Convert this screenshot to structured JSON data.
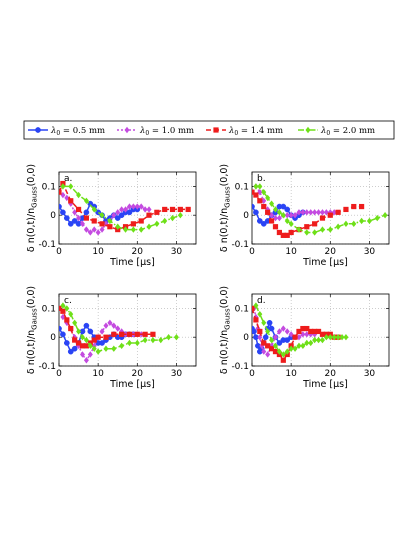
{
  "legend": [
    {
      "label_prefix": "λ",
      "label_sub": "0",
      "label_suffix": " = 0.5 mm",
      "color": "#2a44f5",
      "marker": "circle",
      "dash": "solid"
    },
    {
      "label_prefix": "λ",
      "label_sub": "0",
      "label_suffix": " = 1.0 mm",
      "color": "#c44be0",
      "marker": "diamond",
      "dash": "dotted"
    },
    {
      "label_prefix": "λ",
      "label_sub": "0",
      "label_suffix": " = 1.4 mm",
      "color": "#ee1c1c",
      "marker": "square",
      "dash": "dashed"
    },
    {
      "label_prefix": "λ",
      "label_sub": "0",
      "label_suffix": " = 2.0 mm",
      "color": "#6ee018",
      "marker": "diamond",
      "dash": "dashdot"
    }
  ],
  "shared_axes": {
    "xlabel": "Time [μs]",
    "ylabel_main": "δ n(0,t)/n",
    "ylabel_sub": "Gauss",
    "ylabel_tail": "(0,0)",
    "xlim": [
      0,
      35
    ],
    "ylim": [
      -0.1,
      0.15
    ],
    "xticks": [
      "0",
      "10",
      "20",
      "30"
    ],
    "yticks": [
      "-0.1",
      "0",
      "0.1"
    ],
    "grid": true
  },
  "chart_data": [
    {
      "type": "line",
      "panel_label": "a.",
      "series": [
        {
          "name": "λ0 = 0.5 mm",
          "x": [
            0,
            1,
            2,
            3,
            4,
            5,
            6,
            7,
            8,
            9,
            10,
            11,
            12,
            13,
            14,
            15,
            16,
            17,
            18,
            19,
            20
          ],
          "y": [
            0.03,
            0.01,
            -0.01,
            -0.03,
            -0.02,
            -0.03,
            -0.01,
            0.01,
            0.04,
            0.03,
            0.01,
            0.0,
            -0.02,
            -0.01,
            0.0,
            -0.01,
            0.0,
            0.01,
            0.01,
            0.02,
            0.02
          ]
        },
        {
          "name": "λ0 = 1.0 mm",
          "x": [
            1,
            2,
            3,
            4,
            5,
            6,
            7,
            8,
            9,
            10,
            11,
            12,
            13,
            14,
            15,
            16,
            17,
            18,
            19,
            20,
            21,
            22,
            23
          ],
          "y": [
            0.07,
            0.06,
            0.04,
            0.01,
            -0.01,
            -0.03,
            -0.05,
            -0.06,
            -0.05,
            -0.06,
            -0.05,
            -0.03,
            -0.02,
            0.0,
            0.01,
            0.02,
            0.02,
            0.03,
            0.03,
            0.03,
            0.03,
            0.02,
            0.02
          ]
        },
        {
          "name": "λ0 = 1.4 mm",
          "x": [
            0,
            1,
            3,
            5,
            7,
            9,
            11,
            13,
            15,
            17,
            19,
            21,
            23,
            25,
            27,
            29,
            31,
            33
          ],
          "y": [
            0.08,
            0.11,
            0.05,
            0.02,
            -0.01,
            -0.02,
            -0.03,
            -0.04,
            -0.05,
            -0.04,
            -0.03,
            -0.02,
            0.0,
            0.01,
            0.02,
            0.02,
            0.02,
            0.02
          ]
        },
        {
          "name": "λ0 = 2.0 mm",
          "x": [
            1,
            3,
            5,
            7,
            9,
            11,
            13,
            15,
            17,
            19,
            21,
            23,
            25,
            27,
            29,
            31
          ],
          "y": [
            0.1,
            0.1,
            0.07,
            0.05,
            0.02,
            0.0,
            -0.02,
            -0.04,
            -0.05,
            -0.05,
            -0.05,
            -0.04,
            -0.03,
            -0.02,
            -0.01,
            0.0
          ]
        }
      ]
    },
    {
      "type": "line",
      "panel_label": "b.",
      "series": [
        {
          "name": "λ0 = 0.5 mm",
          "x": [
            0,
            1,
            2,
            3,
            4,
            5,
            6,
            7,
            8,
            9,
            10,
            11,
            12,
            13
          ],
          "y": [
            0.03,
            0.01,
            -0.02,
            -0.03,
            -0.02,
            0.0,
            0.01,
            0.03,
            0.03,
            0.02,
            0.0,
            -0.01,
            0.0,
            0.01
          ]
        },
        {
          "name": "λ0 = 1.0 mm",
          "x": [
            1,
            2,
            3,
            4,
            5,
            6,
            7,
            8,
            9,
            10,
            11,
            12,
            13,
            14,
            15,
            16,
            17,
            18,
            19,
            20,
            21
          ],
          "y": [
            0.1,
            0.08,
            0.05,
            0.02,
            0.0,
            -0.01,
            -0.01,
            0.0,
            0.0,
            0.0,
            0.0,
            0.01,
            0.01,
            0.01,
            0.01,
            0.01,
            0.01,
            0.01,
            0.01,
            0.01,
            0.01
          ]
        },
        {
          "name": "λ0 = 1.4 mm",
          "x": [
            0,
            1,
            2,
            3,
            4,
            5,
            6,
            7,
            8,
            9,
            10,
            12,
            14,
            16,
            18,
            20,
            22,
            24,
            26,
            28
          ],
          "y": [
            0.08,
            0.07,
            0.05,
            0.03,
            0.01,
            -0.02,
            -0.04,
            -0.06,
            -0.07,
            -0.07,
            -0.06,
            -0.05,
            -0.04,
            -0.03,
            -0.01,
            0.0,
            0.01,
            0.02,
            0.03,
            0.03
          ]
        },
        {
          "name": "λ0 = 2.0 mm",
          "x": [
            1,
            2,
            3,
            4,
            5,
            6,
            7,
            8,
            9,
            10,
            12,
            14,
            16,
            18,
            20,
            22,
            24,
            26,
            28,
            30,
            32,
            34
          ],
          "y": [
            0.1,
            0.1,
            0.08,
            0.06,
            0.04,
            0.02,
            0.01,
            0.0,
            -0.02,
            -0.03,
            -0.05,
            -0.06,
            -0.06,
            -0.05,
            -0.05,
            -0.04,
            -0.03,
            -0.03,
            -0.02,
            -0.02,
            -0.01,
            0.0
          ]
        }
      ]
    },
    {
      "type": "line",
      "panel_label": "c.",
      "series": [
        {
          "name": "λ0 = 0.5 mm",
          "x": [
            0,
            1,
            2,
            3,
            4,
            5,
            6,
            7,
            8,
            9,
            10,
            11,
            12,
            13,
            14,
            15,
            16,
            17,
            18,
            19
          ],
          "y": [
            0.03,
            0.01,
            -0.02,
            -0.05,
            -0.04,
            -0.02,
            0.02,
            0.04,
            0.02,
            0.0,
            -0.02,
            -0.02,
            -0.01,
            0.0,
            0.01,
            0.0,
            0.0,
            0.01,
            0.01,
            0.01
          ]
        },
        {
          "name": "λ0 = 1.0 mm",
          "x": [
            1,
            2,
            3,
            4,
            5,
            6,
            7,
            8,
            9,
            10,
            11,
            12,
            13,
            14,
            15,
            16,
            17,
            18,
            19,
            20,
            21
          ],
          "y": [
            0.07,
            0.05,
            0.03,
            0.0,
            -0.03,
            -0.06,
            -0.08,
            -0.06,
            -0.03,
            0.0,
            0.02,
            0.04,
            0.05,
            0.04,
            0.03,
            0.02,
            0.01,
            0.01,
            0.01,
            0.01,
            0.01
          ]
        },
        {
          "name": "λ0 = 1.4 mm",
          "x": [
            0,
            1,
            2,
            3,
            4,
            5,
            6,
            7,
            8,
            9,
            10,
            12,
            14,
            16,
            18,
            20,
            22,
            24
          ],
          "y": [
            0.1,
            0.09,
            0.06,
            0.03,
            -0.01,
            -0.02,
            -0.03,
            -0.03,
            -0.02,
            -0.01,
            0.0,
            0.0,
            0.01,
            0.01,
            0.01,
            0.01,
            0.01,
            0.01
          ]
        },
        {
          "name": "λ0 = 2.0 mm",
          "x": [
            1,
            2,
            3,
            4,
            5,
            6,
            7,
            8,
            9,
            10,
            12,
            14,
            16,
            18,
            20,
            22,
            24,
            26,
            28,
            30
          ],
          "y": [
            0.11,
            0.1,
            0.08,
            0.05,
            0.02,
            0.0,
            -0.01,
            -0.03,
            -0.04,
            -0.05,
            -0.04,
            -0.04,
            -0.03,
            -0.02,
            -0.02,
            -0.01,
            -0.01,
            -0.01,
            0.0,
            0.0
          ]
        }
      ]
    },
    {
      "type": "line",
      "panel_label": "d.",
      "series": [
        {
          "name": "λ0 = 0.5 mm",
          "x": [
            0,
            0.5,
            1,
            1.5,
            2,
            2.5,
            3,
            3.5,
            4,
            4.5,
            5,
            6,
            7,
            8,
            9,
            10
          ],
          "y": [
            0.03,
            0.02,
            0.0,
            -0.03,
            -0.05,
            -0.04,
            -0.02,
            0.0,
            0.03,
            0.05,
            0.03,
            0.0,
            -0.02,
            -0.01,
            -0.01,
            0.0
          ]
        },
        {
          "name": "λ0 = 1.0 mm",
          "x": [
            0.5,
            1,
            1.5,
            2,
            2.5,
            3,
            4,
            5,
            6,
            7,
            8,
            9,
            10,
            11,
            12,
            13,
            14,
            15,
            16
          ],
          "y": [
            0.1,
            0.07,
            0.03,
            0.0,
            -0.03,
            -0.05,
            -0.06,
            -0.03,
            0.0,
            0.02,
            0.03,
            0.02,
            0.01,
            0.0,
            0.0,
            0.01,
            0.01,
            0.01,
            0.01
          ]
        },
        {
          "name": "λ0 = 1.4 mm",
          "x": [
            0,
            1,
            2,
            3,
            4,
            5,
            6,
            7,
            8,
            9,
            10,
            11,
            12,
            13,
            14,
            15,
            16,
            17,
            18,
            19,
            20,
            21,
            22
          ],
          "y": [
            0.1,
            0.06,
            0.02,
            -0.02,
            -0.03,
            -0.04,
            -0.05,
            -0.06,
            -0.08,
            -0.06,
            -0.03,
            0.0,
            0.02,
            0.03,
            0.03,
            0.02,
            0.02,
            0.02,
            0.01,
            0.01,
            0.01,
            0.0,
            0.0
          ]
        },
        {
          "name": "λ0 = 2.0 mm",
          "x": [
            1,
            2,
            3,
            4,
            5,
            6,
            7,
            8,
            9,
            10,
            11,
            12,
            13,
            14,
            15,
            16,
            17,
            18,
            19,
            20,
            21,
            22,
            23,
            24
          ],
          "y": [
            0.11,
            0.08,
            0.05,
            0.02,
            -0.01,
            -0.03,
            -0.05,
            -0.06,
            -0.05,
            -0.04,
            -0.04,
            -0.03,
            -0.03,
            -0.02,
            -0.02,
            -0.01,
            -0.01,
            -0.01,
            0.0,
            0.0,
            0.0,
            0.0,
            0.0,
            0.0
          ]
        }
      ]
    }
  ]
}
